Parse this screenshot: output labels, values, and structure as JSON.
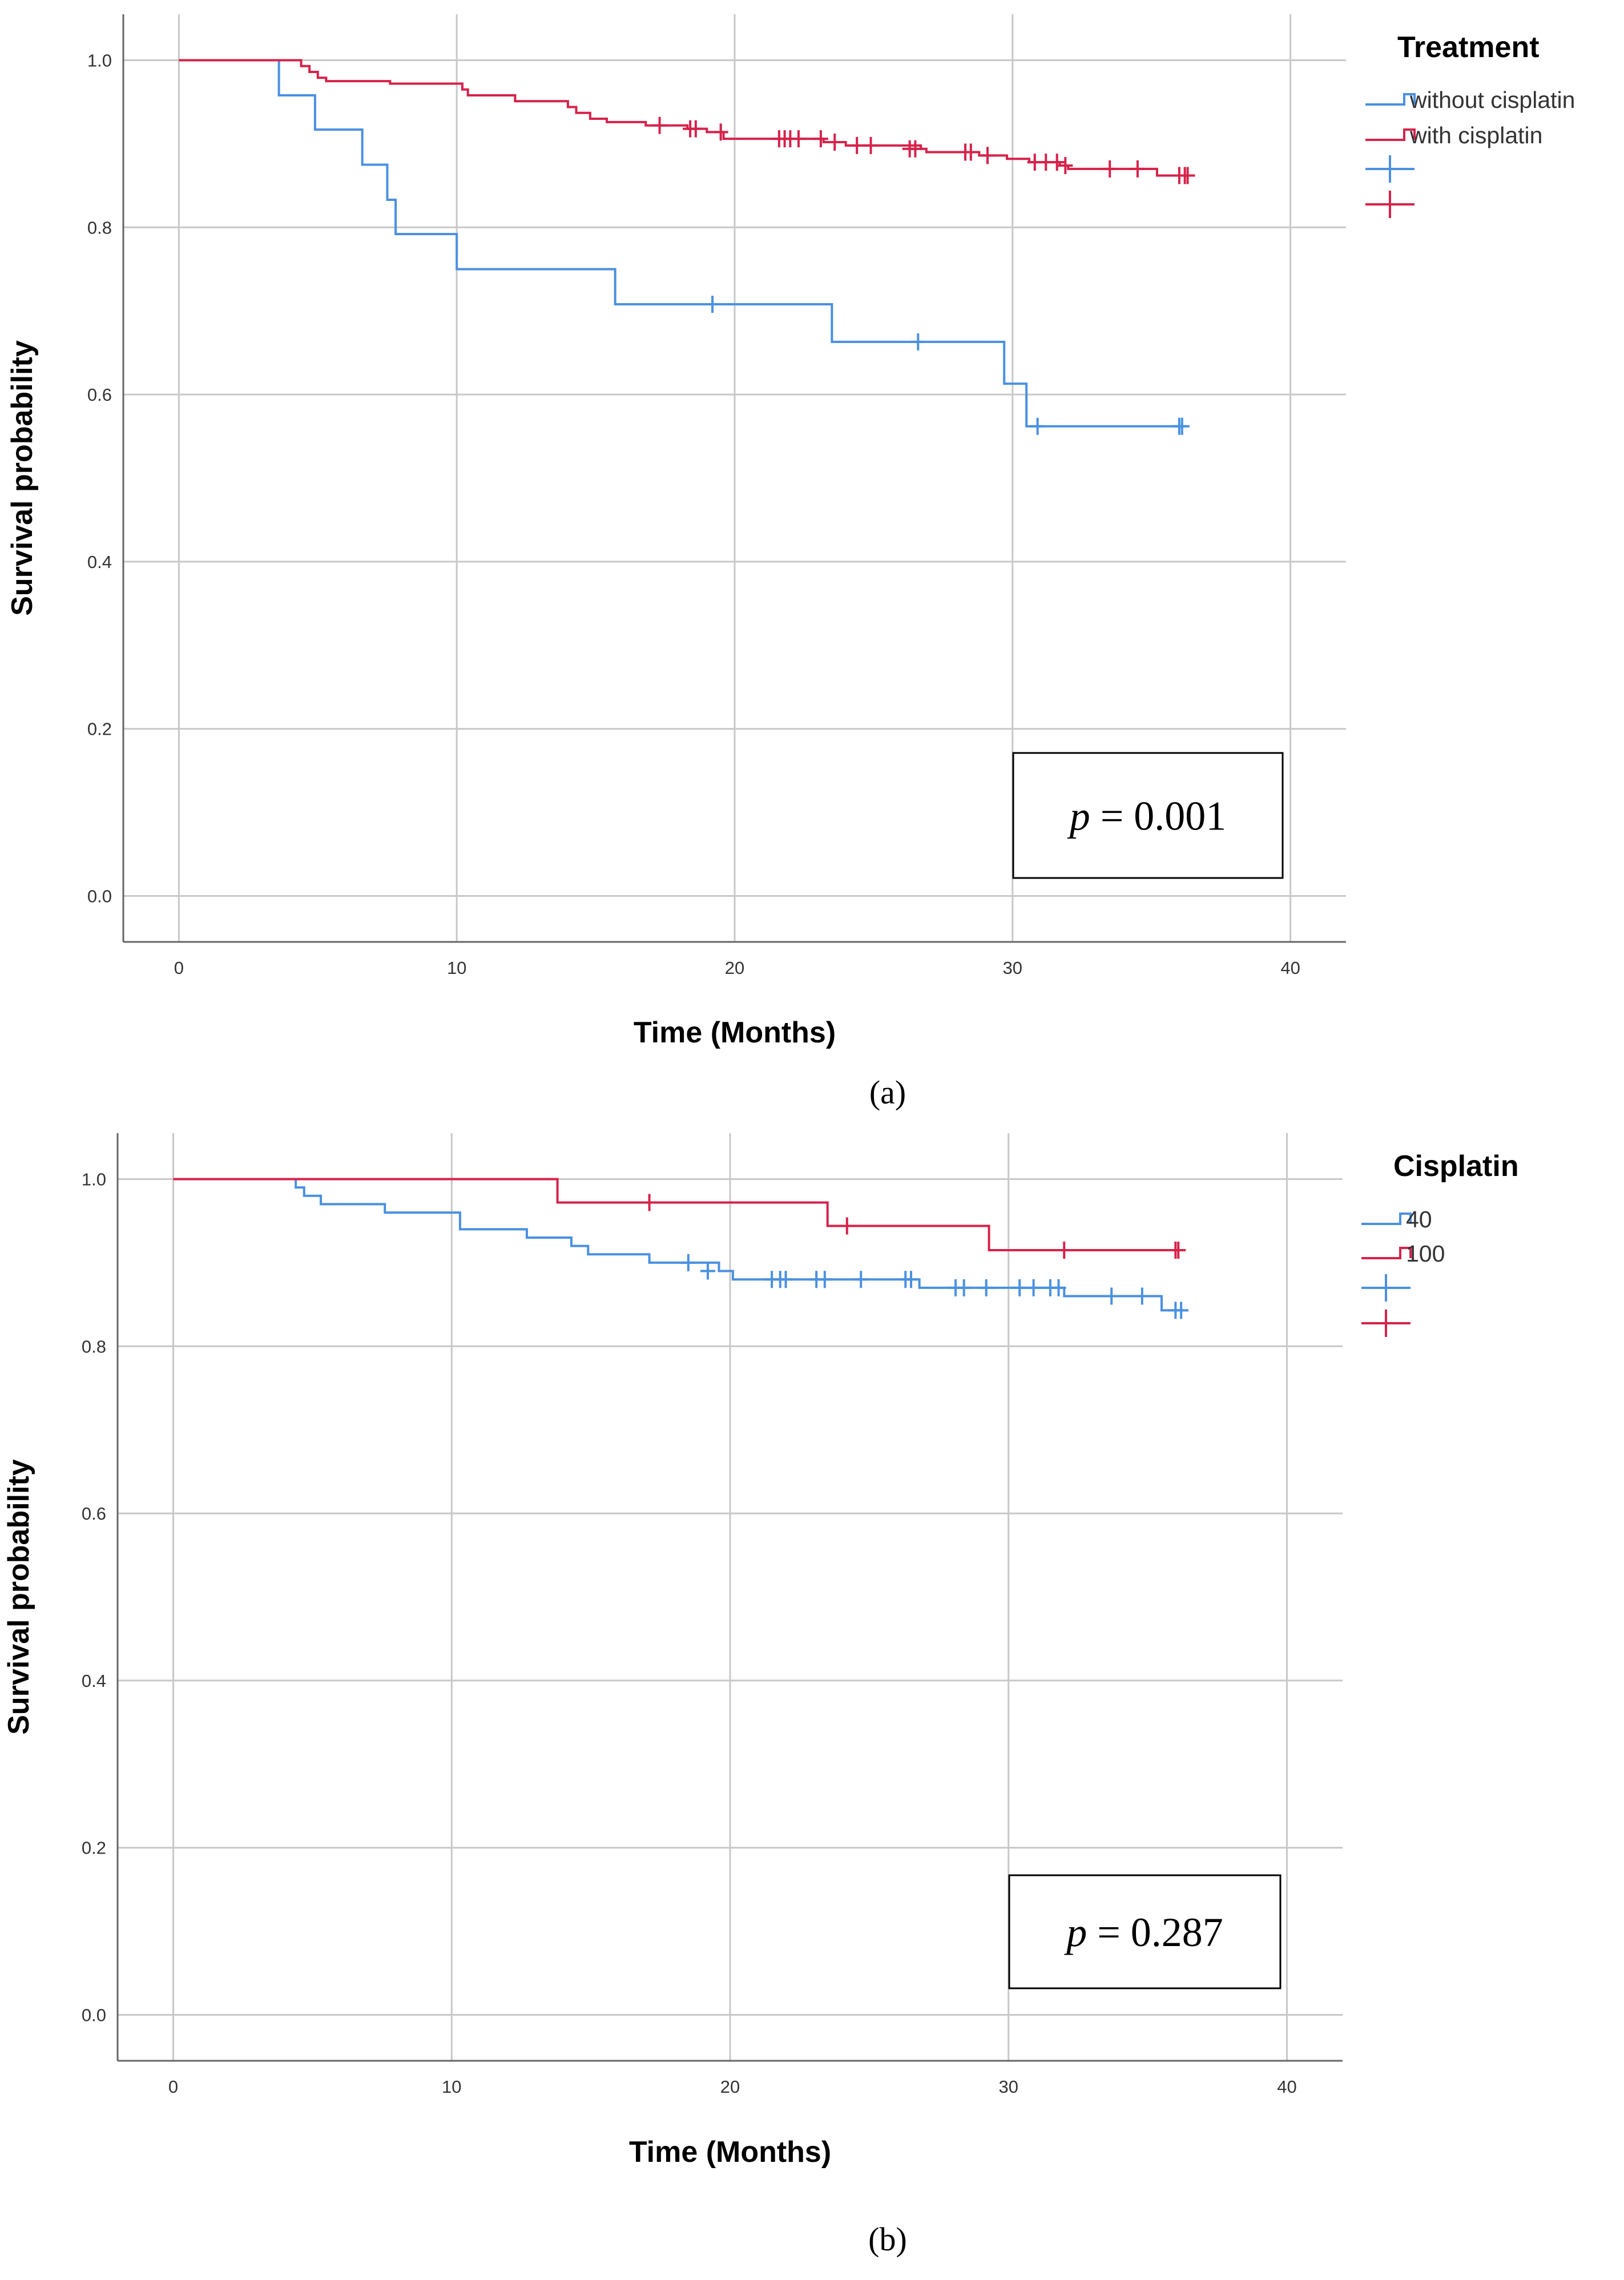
{
  "chart_data": [
    {
      "type": "line",
      "subtype": "kaplan-meier",
      "panel_label": "a",
      "xlabel": "Time (Months)",
      "ylabel": "Survival probability",
      "xlim": [
        -2,
        42
      ],
      "ylim": [
        -0.055,
        1.055
      ],
      "xticks": [
        0,
        10,
        20,
        30,
        40
      ],
      "xtick_labels": [
        "0",
        "10",
        "20",
        "30",
        "40"
      ],
      "yticks": [
        0,
        0.2,
        0.4,
        0.6,
        0.8,
        1.0
      ],
      "ytick_labels": [
        "0.0",
        "0.2",
        "0.4",
        "0.6",
        "0.8",
        "1.0"
      ],
      "grid": true,
      "legend_title": "Treatment",
      "legend_position": "top-right, outside",
      "annotation": {
        "p_label": "p",
        "p_value": "= 0.001"
      },
      "series": [
        {
          "name": "without cisplatin",
          "color": "#4a90e2",
          "steps": [
            [
              0,
              1.0
            ],
            [
              3.6,
              0.958
            ],
            [
              4.9,
              0.917
            ],
            [
              6.6,
              0.875
            ],
            [
              7.5,
              0.833
            ],
            [
              7.8,
              0.792
            ],
            [
              10.0,
              0.75
            ],
            [
              15.7,
              0.708
            ],
            [
              23.5,
              0.663
            ],
            [
              29.7,
              0.613
            ],
            [
              30.5,
              0.562
            ],
            [
              36.1,
              0.562
            ]
          ],
          "censored": [
            [
              19.2,
              0.708
            ],
            [
              26.6,
              0.663
            ],
            [
              30.9,
              0.562
            ],
            [
              36.0,
              0.562
            ],
            [
              36.1,
              0.562
            ]
          ]
        },
        {
          "name": "with cisplatin",
          "color": "#d6224a",
          "steps": [
            [
              0,
              1.0
            ],
            [
              4.4,
              0.993
            ],
            [
              4.7,
              0.986
            ],
            [
              5.0,
              0.979
            ],
            [
              5.3,
              0.975
            ],
            [
              7.6,
              0.972
            ],
            [
              10.2,
              0.965
            ],
            [
              10.4,
              0.958
            ],
            [
              12.1,
              0.951
            ],
            [
              14.0,
              0.944
            ],
            [
              14.3,
              0.937
            ],
            [
              14.8,
              0.93
            ],
            [
              15.4,
              0.926
            ],
            [
              16.8,
              0.922
            ],
            [
              18.3,
              0.918
            ],
            [
              19.0,
              0.914
            ],
            [
              19.6,
              0.906
            ],
            [
              23.2,
              0.902
            ],
            [
              24.0,
              0.898
            ],
            [
              26.7,
              0.894
            ],
            [
              26.9,
              0.89
            ],
            [
              28.8,
              0.886
            ],
            [
              29.8,
              0.882
            ],
            [
              30.6,
              0.878
            ],
            [
              31.7,
              0.874
            ],
            [
              32.0,
              0.87
            ],
            [
              35.2,
              0.862
            ],
            [
              36.4,
              0.862
            ]
          ],
          "censored": [
            [
              17.3,
              0.922
            ],
            [
              18.4,
              0.918
            ],
            [
              18.6,
              0.918
            ],
            [
              19.5,
              0.914
            ],
            [
              21.6,
              0.906
            ],
            [
              21.8,
              0.906
            ],
            [
              22.0,
              0.906
            ],
            [
              22.3,
              0.906
            ],
            [
              23.1,
              0.906
            ],
            [
              23.6,
              0.902
            ],
            [
              24.4,
              0.898
            ],
            [
              24.9,
              0.898
            ],
            [
              26.3,
              0.894
            ],
            [
              26.5,
              0.894
            ],
            [
              28.3,
              0.89
            ],
            [
              28.5,
              0.89
            ],
            [
              29.1,
              0.886
            ],
            [
              30.8,
              0.878
            ],
            [
              31.2,
              0.878
            ],
            [
              31.6,
              0.878
            ],
            [
              31.9,
              0.874
            ],
            [
              33.5,
              0.87
            ],
            [
              34.5,
              0.87
            ],
            [
              36.0,
              0.862
            ],
            [
              36.2,
              0.862
            ],
            [
              36.3,
              0.862
            ]
          ]
        }
      ]
    },
    {
      "type": "line",
      "subtype": "kaplan-meier",
      "panel_label": "b",
      "xlabel": "Time (Months)",
      "ylabel": "Survival probability",
      "xlim": [
        -2,
        42
      ],
      "ylim": [
        -0.055,
        1.055
      ],
      "xticks": [
        0,
        10,
        20,
        30,
        40
      ],
      "xtick_labels": [
        "0",
        "10",
        "20",
        "30",
        "40"
      ],
      "yticks": [
        0,
        0.2,
        0.4,
        0.6,
        0.8,
        1.0
      ],
      "ytick_labels": [
        "0.0",
        "0.2",
        "0.4",
        "0.6",
        "0.8",
        "1.0"
      ],
      "grid": true,
      "legend_title": "Cisplatin",
      "legend_position": "top-right, outside",
      "annotation": {
        "p_label": "p",
        "p_value": "= 0.287"
      },
      "series": [
        {
          "name": "40",
          "color": "#4a90e2",
          "steps": [
            [
              0,
              1.0
            ],
            [
              4.4,
              0.99
            ],
            [
              4.7,
              0.98
            ],
            [
              5.3,
              0.97
            ],
            [
              7.6,
              0.96
            ],
            [
              10.3,
              0.94
            ],
            [
              12.7,
              0.93
            ],
            [
              14.3,
              0.92
            ],
            [
              14.9,
              0.91
            ],
            [
              17.1,
              0.9
            ],
            [
              19.6,
              0.89
            ],
            [
              20.1,
              0.88
            ],
            [
              26.8,
              0.87
            ],
            [
              32.0,
              0.86
            ],
            [
              35.5,
              0.843
            ],
            [
              36.3,
              0.843
            ]
          ],
          "censored": [
            [
              18.5,
              0.9
            ],
            [
              19.2,
              0.89
            ],
            [
              21.5,
              0.88
            ],
            [
              21.8,
              0.88
            ],
            [
              22.0,
              0.88
            ],
            [
              23.1,
              0.88
            ],
            [
              23.4,
              0.88
            ],
            [
              24.7,
              0.88
            ],
            [
              26.3,
              0.88
            ],
            [
              26.5,
              0.88
            ],
            [
              28.1,
              0.87
            ],
            [
              28.4,
              0.87
            ],
            [
              29.2,
              0.87
            ],
            [
              30.4,
              0.87
            ],
            [
              30.9,
              0.87
            ],
            [
              31.5,
              0.87
            ],
            [
              31.8,
              0.87
            ],
            [
              33.7,
              0.86
            ],
            [
              34.8,
              0.86
            ],
            [
              36.0,
              0.843
            ],
            [
              36.2,
              0.843
            ]
          ]
        },
        {
          "name": "100",
          "color": "#d6224a",
          "steps": [
            [
              0,
              1.0
            ],
            [
              13.8,
              0.972
            ],
            [
              23.5,
              0.944
            ],
            [
              29.3,
              0.915
            ],
            [
              36.1,
              0.915
            ]
          ],
          "censored": [
            [
              17.1,
              0.972
            ],
            [
              24.2,
              0.944
            ],
            [
              32.0,
              0.915
            ],
            [
              36.0,
              0.915
            ],
            [
              36.1,
              0.915
            ]
          ]
        }
      ]
    }
  ],
  "captions": {
    "panel_a": "(a)",
    "panel_b": "(b)"
  }
}
